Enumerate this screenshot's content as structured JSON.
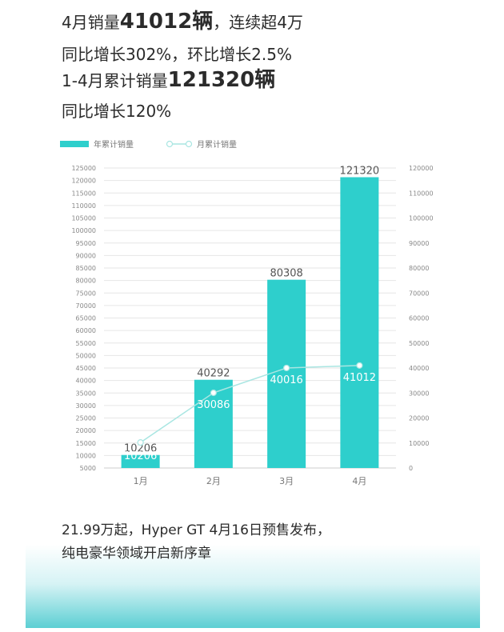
{
  "headline": {
    "line1_prefix": "4月销量",
    "line1_number": "41012辆",
    "line1_suffix": "，连续超4万",
    "line2": "同比增长302%，环比增长2.5%",
    "line3_prefix": "1-4月累计销量",
    "line3_number": "121320辆",
    "line4": "同比增长120%"
  },
  "colors": {
    "bar": "#2ecfcc",
    "line": "#a9e6e2",
    "accent": "#2ecfcc"
  },
  "chart_data": {
    "type": "bar",
    "categories": [
      "1月",
      "2月",
      "3月",
      "4月"
    ],
    "series": [
      {
        "name": "年累计销量",
        "type": "bar",
        "axis": "left",
        "values": [
          10206,
          40292,
          80308,
          121320
        ]
      },
      {
        "name": "月累计销量",
        "type": "line",
        "axis": "right",
        "values": [
          10206,
          30086,
          40016,
          41012
        ]
      }
    ],
    "left_axis": {
      "range": [
        5000,
        125000
      ],
      "ticks": [
        5000,
        10000,
        15000,
        20000,
        25000,
        30000,
        35000,
        40000,
        45000,
        50000,
        55000,
        60000,
        65000,
        70000,
        75000,
        80000,
        85000,
        90000,
        95000,
        100000,
        105000,
        110000,
        115000,
        120000,
        125000
      ]
    },
    "right_axis": {
      "range": [
        0,
        120000
      ],
      "ticks": [
        0,
        10000,
        20000,
        30000,
        40000,
        50000,
        60000,
        70000,
        80000,
        90000,
        100000,
        110000,
        120000
      ]
    },
    "legend_position": "top-left",
    "grid": true
  },
  "footer": {
    "line1": "21.99万起，Hyper GT 4月16日预售发布，",
    "line2": "纯电豪华领域开启新序章"
  }
}
